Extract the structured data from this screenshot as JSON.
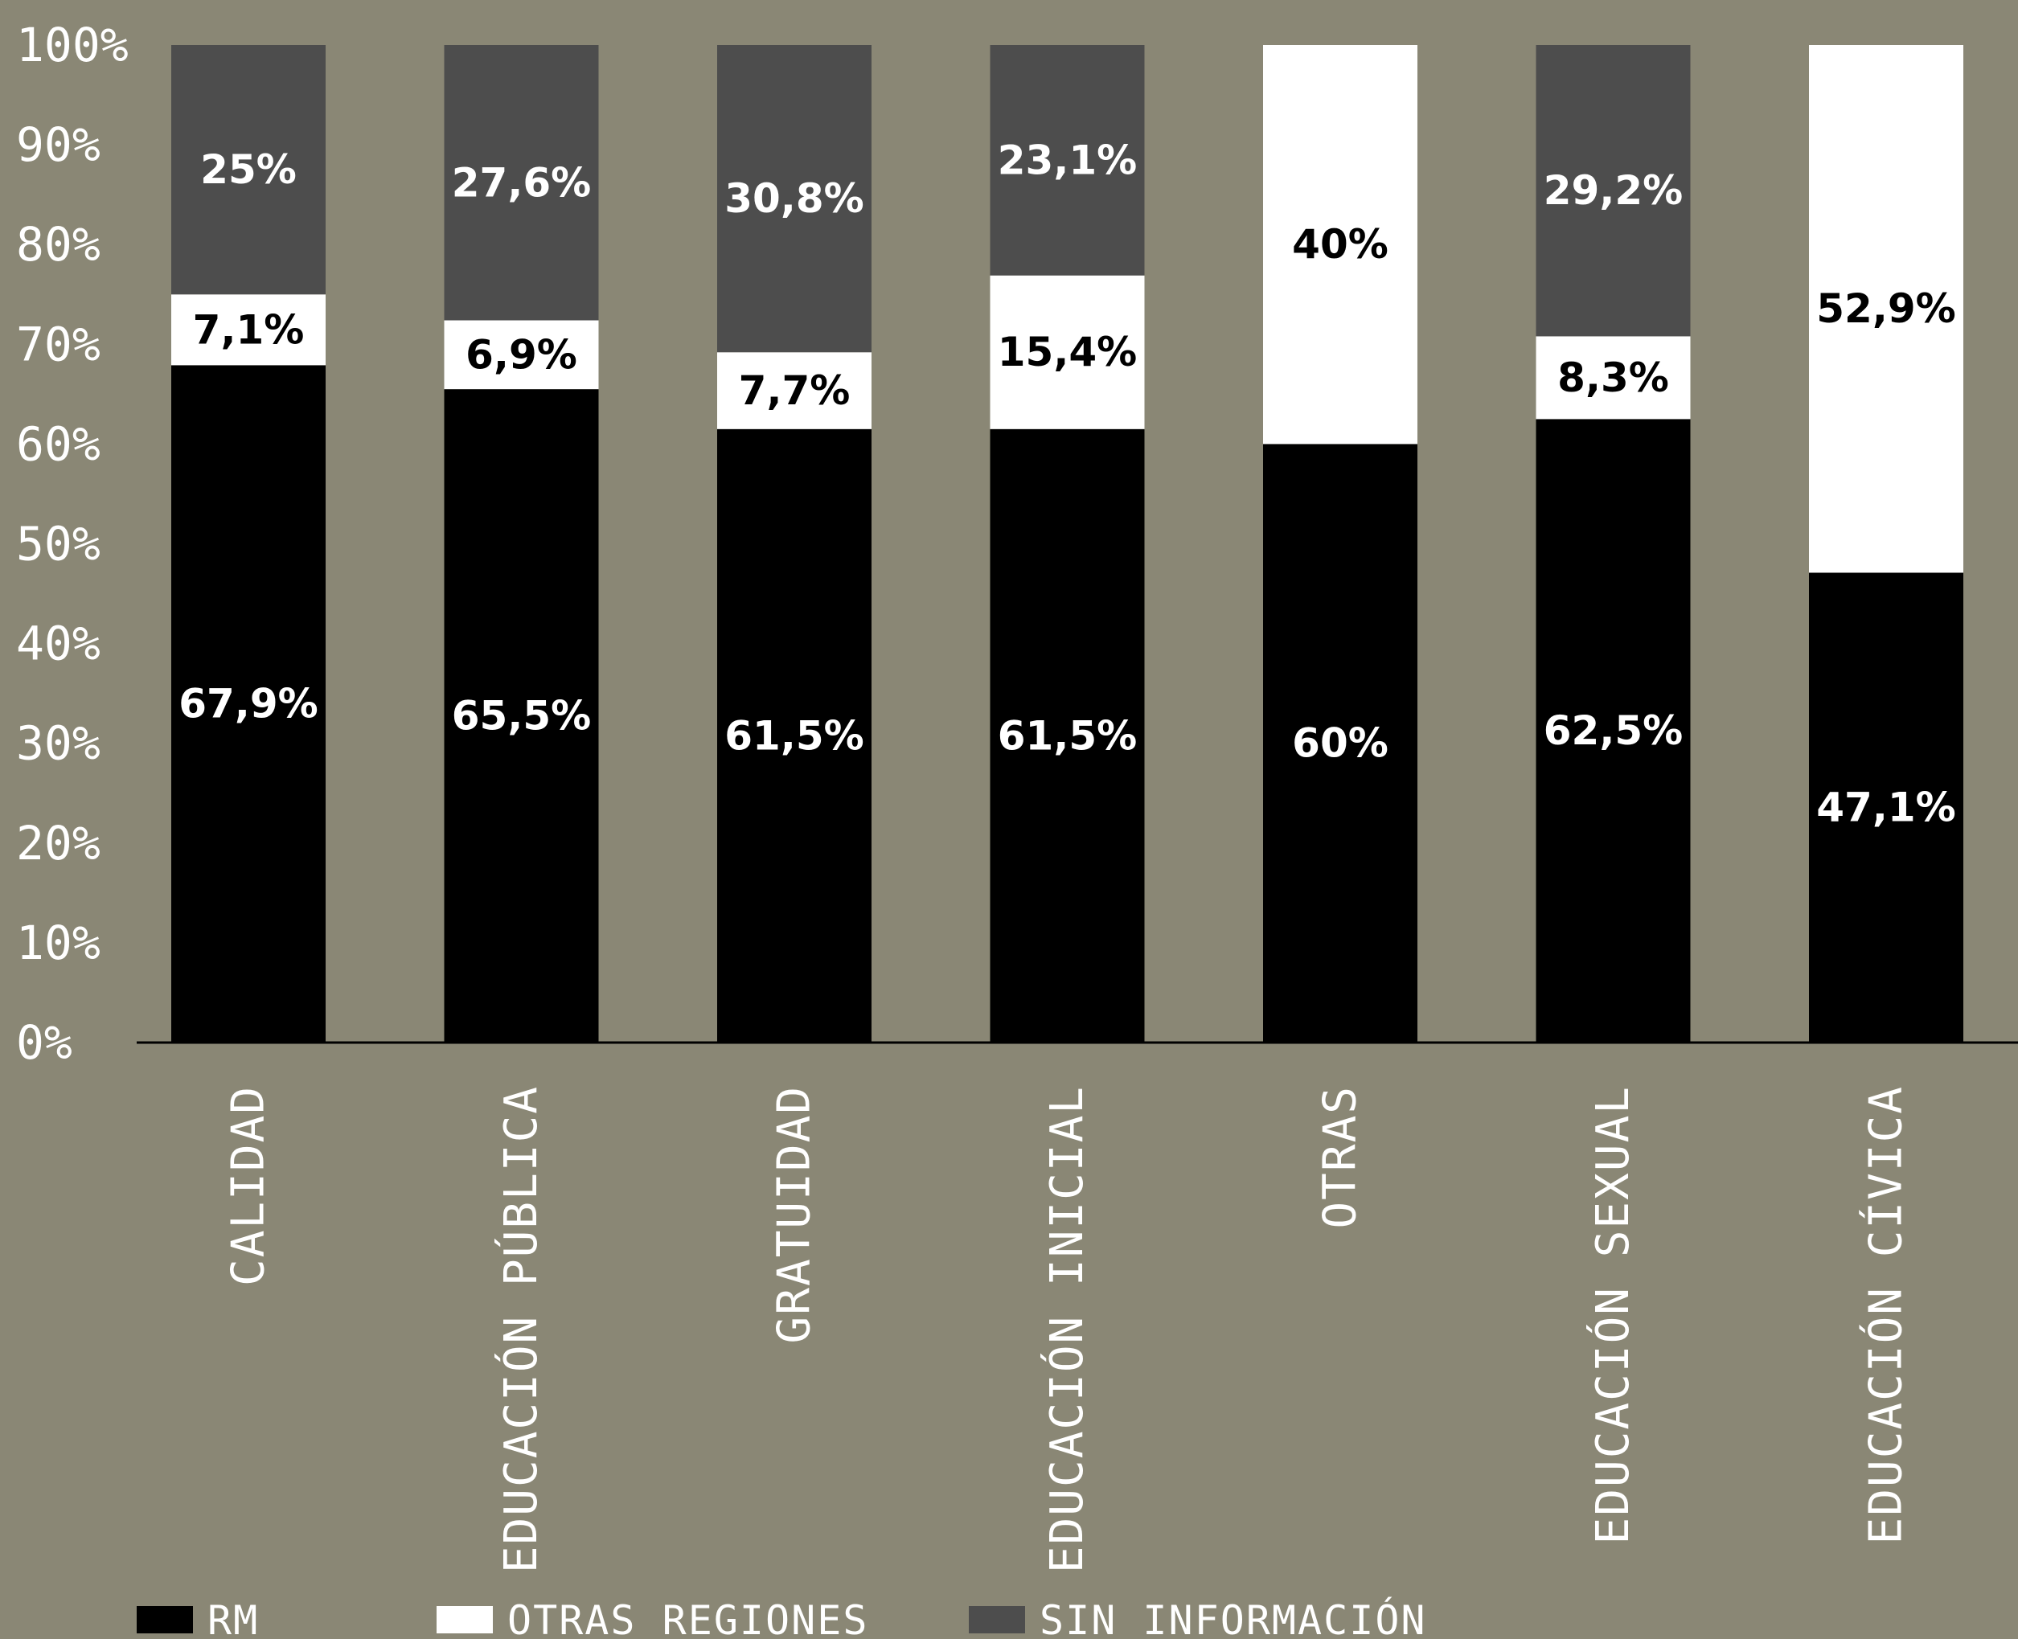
{
  "chart_data": {
    "type": "bar",
    "stacked": true,
    "categories": [
      "CALIDAD",
      "EDUCACIÓN PÚBLICA",
      "GRATUIDAD",
      "EDUCACIÓN INICIAL",
      "OTRAS",
      "EDUCACIÓN SEXUAL",
      "EDUCACIÓN CÍVICA"
    ],
    "series": [
      {
        "name": "RM",
        "color": "#000000",
        "values": [
          67.9,
          65.5,
          61.5,
          61.5,
          60,
          62.5,
          47.1
        ],
        "labels": [
          "67,9%",
          "65,5%",
          "61,5%",
          "61,5%",
          "60%",
          "62,5%",
          "47,1%"
        ],
        "label_color": "#ffffff"
      },
      {
        "name": "OTRAS REGIONES",
        "color": "#ffffff",
        "values": [
          7.1,
          6.9,
          7.7,
          15.4,
          40,
          8.3,
          52.9
        ],
        "labels": [
          "7,1%",
          "6,9%",
          "7,7%",
          "15,4%",
          "40%",
          "8,3%",
          "52,9%"
        ],
        "label_color": "#000000"
      },
      {
        "name": "SIN INFORMACIÓN",
        "color": "#4d4d4d",
        "values": [
          25,
          27.6,
          30.8,
          23.1,
          0,
          29.2,
          0
        ],
        "labels": [
          "25%",
          "27,6%",
          "30,8%",
          "23,1%",
          "",
          "29,2%",
          ""
        ],
        "label_color": "#ffffff"
      }
    ],
    "yticks": [
      "0%",
      "10%",
      "20%",
      "30%",
      "40%",
      "50%",
      "60%",
      "70%",
      "80%",
      "90%",
      "100%"
    ],
    "ylim": [
      0,
      100
    ],
    "title": "",
    "xlabel": "",
    "ylabel": "",
    "grid": false,
    "legend_position": "bottom-left",
    "background": "#8a8775"
  }
}
